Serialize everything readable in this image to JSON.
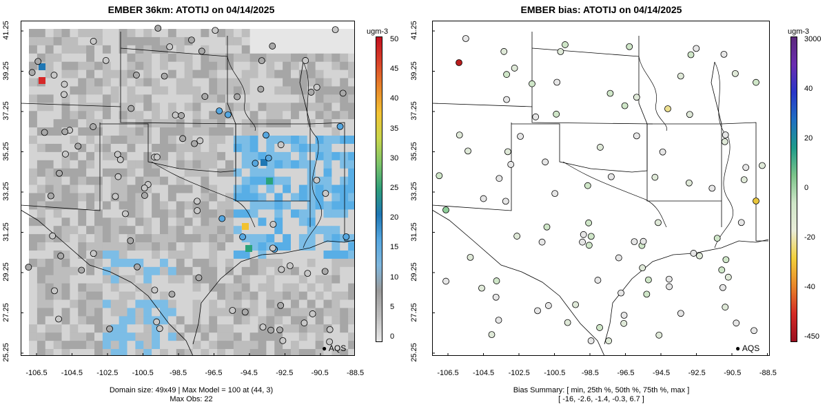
{
  "panels": [
    {
      "title": "EMBER 36km: ATOTIJ on 04/14/2025",
      "x_ticks": [
        "-106.5",
        "-104.5",
        "-102.5",
        "-100.5",
        "-98.5",
        "-96.5",
        "-94.5",
        "-92.5",
        "-90.5",
        "-88.5"
      ],
      "y_ticks": [
        "41.25",
        "39.25",
        "37.25",
        "35.25",
        "33.25",
        "31.25",
        "29.25",
        "27.25",
        "25.25"
      ],
      "legend_label": "AQS",
      "colorbar": {
        "unit": "ugm-3",
        "ticks": [
          "50",
          "45",
          "40",
          "35",
          "30",
          "25",
          "20",
          "15",
          "10",
          "5",
          "0"
        ],
        "colors": [
          "#e8e8e8",
          "#bdbdbd",
          "#9a9a9a",
          "#7fb7de",
          "#56a7e0",
          "#1f77b4",
          "#2e9e7a",
          "#7cc46a",
          "#c8d64c",
          "#f3c334",
          "#e8872a",
          "#d9432a",
          "#c20f1f"
        ]
      },
      "footer": [
        "Domain size: 49x49 | Max Model = 100 at (44, 3)",
        "Max Obs: 22"
      ]
    },
    {
      "title": "EMBER bias: ATOTIJ on 04/14/2025",
      "x_ticks": [
        "-106.5",
        "-104.5",
        "-102.5",
        "-100.5",
        "-98.5",
        "-96.5",
        "-94.5",
        "-92.5",
        "-90.5",
        "-88.5"
      ],
      "y_ticks": [
        "41.25",
        "39.25",
        "37.25",
        "35.25",
        "33.25",
        "31.25",
        "29.25",
        "27.25",
        "25.25"
      ],
      "legend_label": "AQS",
      "colorbar": {
        "unit": "ugm-3",
        "ticks": [
          "3000",
          "40",
          "20",
          "0",
          "-20",
          "-40",
          "-450"
        ],
        "colors": [
          "#9a1020",
          "#d42a25",
          "#e8862a",
          "#f2d03a",
          "#e9ecd8",
          "#cfe6c8",
          "#7cc48a",
          "#1e9b8a",
          "#1f6fc2",
          "#2836c8",
          "#6a2cb0",
          "#5b2a7c"
        ]
      },
      "footer": [
        "Bias Summary: [ min, 25th %, 50th %, 75th %, max ]",
        "[ -16,   -2.6,   -1.4,   -0.3,   6.7 ]"
      ]
    }
  ]
}
